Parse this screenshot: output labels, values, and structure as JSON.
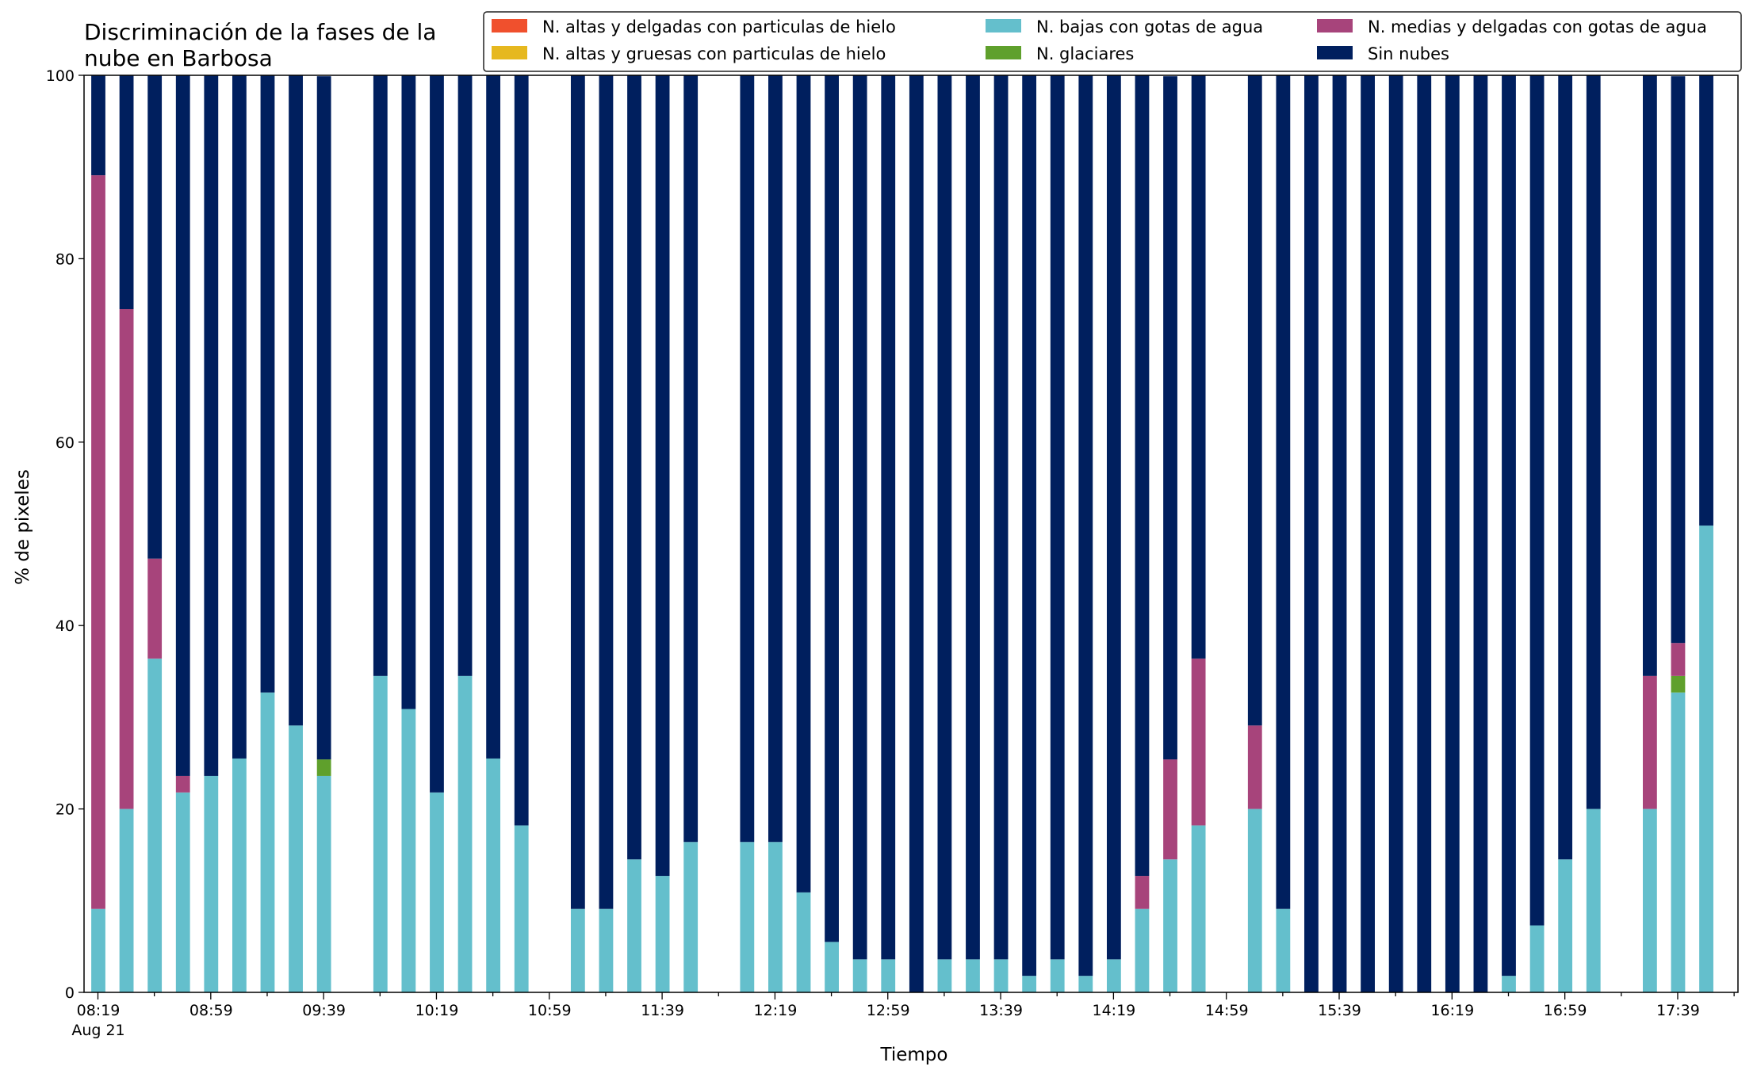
{
  "chart_data": {
    "type": "bar",
    "stacked": true,
    "title_lines": [
      "Discriminación de la fases de la",
      "nube en Barbosa"
    ],
    "xlabel": "Tiempo",
    "ylabel": "% de pixeles",
    "ylim": [
      0,
      100
    ],
    "yticks": [
      0,
      20,
      40,
      60,
      80,
      100
    ],
    "grid": false,
    "legend_position": "top-right",
    "x_start_label": "08:19",
    "x_date_label": "Aug 21",
    "interval_minutes": 10,
    "xtick_labels": [
      "08:19",
      "08:59",
      "09:39",
      "10:19",
      "10:59",
      "11:39",
      "12:19",
      "12:59",
      "13:39",
      "14:19",
      "14:59",
      "15:39",
      "16:19",
      "16:59",
      "17:39"
    ],
    "categories": [
      "08:19",
      "08:29",
      "08:39",
      "08:49",
      "08:59",
      "09:09",
      "09:19",
      "09:29",
      "09:39",
      "09:49",
      "09:59",
      "10:09",
      "10:19",
      "10:29",
      "10:39",
      "10:49",
      "10:59",
      "11:09",
      "11:19",
      "11:29",
      "11:39",
      "11:49",
      "11:59",
      "12:09",
      "12:19",
      "12:29",
      "12:39",
      "12:49",
      "12:59",
      "13:09",
      "13:19",
      "13:29",
      "13:39",
      "13:49",
      "13:59",
      "14:09",
      "14:19",
      "14:29",
      "14:39",
      "14:49",
      "14:59",
      "15:09",
      "15:19",
      "15:29",
      "15:39",
      "15:49",
      "15:59",
      "16:09",
      "16:19",
      "16:29",
      "16:39",
      "16:49",
      "16:59",
      "17:09",
      "17:19",
      "17:29",
      "17:39",
      "17:49"
    ],
    "series": [
      {
        "name": "N. altas y delgadas con particulas de hielo",
        "color": "#f0502d",
        "values": [
          0,
          0,
          0,
          0,
          0,
          0,
          0,
          0,
          0,
          null,
          0,
          0,
          0,
          0,
          0,
          0,
          null,
          0,
          0,
          0,
          0,
          0,
          null,
          0,
          0,
          0,
          0,
          0,
          0,
          0,
          0,
          0,
          0,
          0,
          0,
          0,
          0,
          0,
          0,
          0,
          null,
          0,
          0,
          0,
          0,
          0,
          0,
          0,
          0,
          0,
          0,
          0,
          0,
          0,
          null,
          0,
          0,
          0
        ]
      },
      {
        "name": "N. altas y gruesas con particulas de hielo",
        "color": "#e6b81f",
        "values": [
          0,
          0,
          0,
          0,
          0,
          0,
          0,
          0,
          0,
          null,
          0,
          0,
          0,
          0,
          0,
          0,
          null,
          0,
          0,
          0,
          0,
          0,
          null,
          0,
          0,
          0,
          0,
          0,
          0,
          0,
          0,
          0,
          0,
          0,
          0,
          0,
          0,
          0,
          0,
          0,
          null,
          0,
          0,
          0,
          0,
          0,
          0,
          0,
          0,
          0,
          0,
          0,
          0,
          0,
          null,
          0,
          0,
          0
        ]
      },
      {
        "name": "N. bajas con gotas de agua",
        "color": "#64bfcc",
        "values": [
          9.1,
          20,
          36.4,
          21.8,
          23.6,
          25.5,
          32.7,
          29.1,
          23.6,
          null,
          34.5,
          30.9,
          21.8,
          34.5,
          25.5,
          18.2,
          null,
          9.1,
          9.1,
          14.5,
          12.7,
          16.4,
          null,
          16.4,
          16.4,
          10.9,
          5.5,
          3.6,
          3.6,
          0,
          3.6,
          3.6,
          3.6,
          1.8,
          3.6,
          1.8,
          3.6,
          9.1,
          14.5,
          18.2,
          null,
          20,
          9.1,
          0,
          0,
          0,
          0,
          0,
          0,
          0,
          1.8,
          7.3,
          14.5,
          20,
          null,
          20,
          32.7,
          50.9
        ]
      },
      {
        "name": "N. glaciares",
        "color": "#5fa02c",
        "values": [
          0,
          0,
          0,
          0,
          0,
          0,
          0,
          0,
          1.8,
          null,
          0,
          0,
          0,
          0,
          0,
          0,
          null,
          0,
          0,
          0,
          0,
          0,
          null,
          0,
          0,
          0,
          0,
          0,
          0,
          0,
          0,
          0,
          0,
          0,
          0,
          0,
          0,
          0,
          0,
          0,
          null,
          0,
          0,
          0,
          0,
          0,
          0,
          0,
          0,
          0,
          0,
          0,
          0,
          0,
          null,
          0,
          1.8,
          0
        ]
      },
      {
        "name": "N. medias y delgadas con gotas de agua",
        "color": "#a7447b",
        "values": [
          80,
          54.5,
          10.9,
          1.8,
          0,
          0,
          0,
          0,
          0,
          null,
          0,
          0,
          0,
          0,
          0,
          0,
          null,
          0,
          0,
          0,
          0,
          0,
          null,
          0,
          0,
          0,
          0,
          0,
          0,
          0,
          0,
          0,
          0,
          0,
          0,
          0,
          0,
          3.6,
          10.9,
          18.2,
          null,
          9.1,
          0,
          0,
          0,
          0,
          0,
          0,
          0,
          0,
          0,
          0,
          0,
          0,
          null,
          14.5,
          3.6,
          0
        ]
      },
      {
        "name": "Sin nubes",
        "color": "#001f5e",
        "values": [
          10.9,
          25.5,
          52.7,
          76.4,
          76.4,
          74.5,
          67.3,
          70.9,
          74.5,
          null,
          65.5,
          69.1,
          78.2,
          65.5,
          74.5,
          81.8,
          null,
          90.9,
          90.9,
          85.5,
          87.3,
          83.6,
          null,
          83.6,
          83.6,
          89.1,
          94.5,
          96.4,
          96.4,
          100,
          96.4,
          96.4,
          96.4,
          98.2,
          96.4,
          98.2,
          96.4,
          87.3,
          74.5,
          63.6,
          null,
          70.9,
          90.9,
          100,
          100,
          100,
          100,
          100,
          100,
          100,
          98.2,
          92.7,
          85.5,
          80,
          null,
          65.5,
          61.8,
          49.1
        ]
      }
    ]
  }
}
